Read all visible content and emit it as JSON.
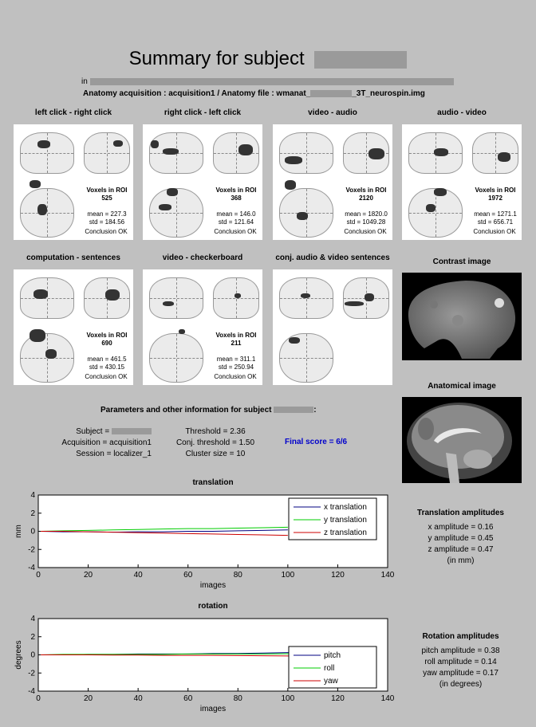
{
  "header": {
    "title": "Summary for subject",
    "in_label": "in",
    "anatomy_line": "Anatomy acquisition : acquisition1 / Anatomy file : wmanat_",
    "anatomy_suffix": "_3T_neurospin.img"
  },
  "panels": [
    {
      "title": "left click - right click",
      "voxels_label": "Voxels in ROI",
      "voxels": "525",
      "mean": "mean = 227.3",
      "std": "std = 184.56",
      "conclusion": "Conclusion OK"
    },
    {
      "title": "right click - left click",
      "voxels_label": "Voxels in ROI",
      "voxels": "368",
      "mean": "mean = 146.0",
      "std": "std = 121.64",
      "conclusion": "Conclusion OK"
    },
    {
      "title": "video - audio",
      "voxels_label": "Voxels in ROI",
      "voxels": "2120",
      "mean": "mean = 1820.0",
      "std": "std = 1049.28",
      "conclusion": "Conclusion OK"
    },
    {
      "title": "audio - video",
      "voxels_label": "Voxels in ROI",
      "voxels": "1972",
      "mean": "mean = 1271.1",
      "std": "std = 656.71",
      "conclusion": "Conclusion OK"
    },
    {
      "title": "computation - sentences",
      "voxels_label": "Voxels in ROI",
      "voxels": "690",
      "mean": "mean = 461.5",
      "std": "std = 430.15",
      "conclusion": "Conclusion OK"
    },
    {
      "title": "video - checkerboard",
      "voxels_label": "Voxels in ROI",
      "voxels": "211",
      "mean": "mean = 311.1",
      "std": "std = 250.94",
      "conclusion": "Conclusion OK"
    },
    {
      "title": "conj. audio & video sentences"
    }
  ],
  "contrast_title": "Contrast image",
  "anatomical_title": "Anatomical image",
  "params": {
    "heading": "Parameters and other information for subject",
    "subject": "Subject =",
    "acquisition": "Acquisition = acquisition1",
    "session": "Session = localizer_1",
    "threshold": "Threshold = 2.36",
    "conj_threshold": "Conj. threshold = 1.50",
    "cluster": "Cluster size = 10",
    "final_score": "Final score = 6/6",
    "final_color": "#0000cc"
  },
  "translation_amp": {
    "title": "Translation amplitudes",
    "x": "x amplitude = 0.16",
    "y": "y amplitude = 0.45",
    "z": "z amplitude = 0.47",
    "unit": "(in mm)"
  },
  "rotation_amp": {
    "title": "Rotation amplitudes",
    "pitch": "pitch amplitude = 0.38",
    "roll": "roll amplitude = 0.14",
    "yaw": "yaw amplitude = 0.17",
    "unit": "(in degrees)"
  },
  "chart_data": [
    {
      "type": "line",
      "title": "translation",
      "xlabel": "images",
      "ylabel": "mm",
      "xlim": [
        0,
        140
      ],
      "ylim": [
        -4,
        4
      ],
      "xticks": [
        0,
        20,
        40,
        60,
        80,
        100,
        120,
        140
      ],
      "yticks": [
        -4,
        -2,
        0,
        2,
        4
      ],
      "legend_position": "top-right",
      "series": [
        {
          "name": "x translation",
          "color": "#000080",
          "x": [
            1,
            10,
            20,
            30,
            40,
            50,
            60,
            70,
            80,
            90,
            100
          ],
          "values": [
            0,
            -0.05,
            -0.05,
            -0.1,
            -0.05,
            -0.05,
            0,
            0,
            0.05,
            0.1,
            0.15
          ]
        },
        {
          "name": "y translation",
          "color": "#00cc00",
          "x": [
            1,
            10,
            20,
            30,
            40,
            50,
            60,
            70,
            80,
            90,
            100
          ],
          "values": [
            0,
            0.05,
            0.1,
            0.15,
            0.2,
            0.25,
            0.3,
            0.3,
            0.35,
            0.4,
            0.45
          ]
        },
        {
          "name": "z translation",
          "color": "#cc0000",
          "x": [
            1,
            10,
            20,
            30,
            40,
            50,
            60,
            70,
            80,
            90,
            100
          ],
          "values": [
            0,
            0,
            -0.05,
            -0.1,
            -0.15,
            -0.2,
            -0.25,
            -0.3,
            -0.35,
            -0.4,
            -0.45
          ]
        }
      ]
    },
    {
      "type": "line",
      "title": "rotation",
      "xlabel": "images",
      "ylabel": "degrees",
      "xlim": [
        0,
        140
      ],
      "ylim": [
        -4,
        4
      ],
      "xticks": [
        0,
        20,
        40,
        60,
        80,
        100,
        120,
        140
      ],
      "yticks": [
        -4,
        -2,
        0,
        2,
        4
      ],
      "legend_position": "bottom-right",
      "series": [
        {
          "name": "pitch",
          "color": "#000080",
          "x": [
            1,
            10,
            20,
            30,
            40,
            50,
            60,
            70,
            80,
            90,
            100,
            110,
            118
          ],
          "values": [
            0,
            0,
            0.05,
            0.05,
            0.1,
            0.1,
            0.1,
            0.15,
            0.15,
            0.2,
            0.25,
            0.3,
            0.35
          ]
        },
        {
          "name": "roll",
          "color": "#00cc00",
          "x": [
            1,
            10,
            20,
            30,
            40,
            50,
            60,
            70,
            80,
            90,
            100,
            110,
            118
          ],
          "values": [
            0,
            0.05,
            0.05,
            0.05,
            0.05,
            0.05,
            0.1,
            0.1,
            0.1,
            0.1,
            0.12,
            0.13,
            0.14
          ]
        },
        {
          "name": "yaw",
          "color": "#cc0000",
          "x": [
            1,
            10,
            20,
            30,
            40,
            50,
            60,
            70,
            80,
            90,
            100,
            110,
            118
          ],
          "values": [
            0,
            0,
            0,
            -0.02,
            -0.02,
            -0.05,
            -0.05,
            -0.05,
            -0.08,
            -0.1,
            -0.12,
            -0.14,
            -0.16
          ]
        }
      ]
    }
  ]
}
